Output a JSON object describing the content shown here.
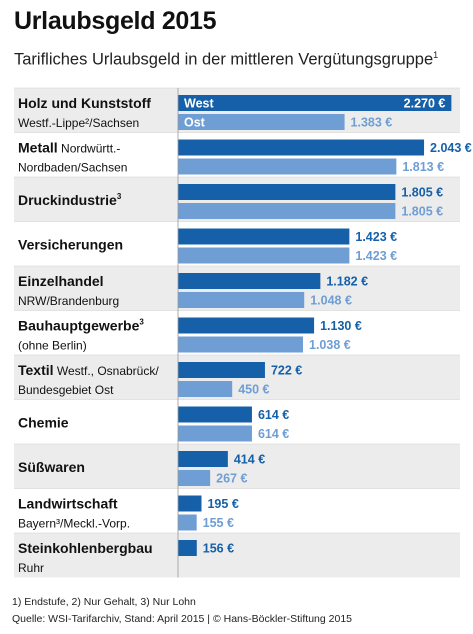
{
  "header": {
    "title": "Urlaubsgeld 2015",
    "subtitle": "Tarifliches Urlaubsgeld in der mittleren Vergütungsgruppe",
    "subtitle_sup": "1"
  },
  "footer": {
    "notes": "1) Endstufe, 2) Nur Gehalt, 3) Nur Lohn",
    "source": "Quelle: WSI-Tarifarchiv, Stand: April 2015 | © Hans-Böckler-Stiftung 2015"
  },
  "colors": {
    "west": "#1560a8",
    "ost": "#6e9ed4",
    "shade": "#ececec",
    "text": "#111111"
  },
  "chart_data": {
    "type": "bar",
    "orientation": "horizontal",
    "unit": "€",
    "series": [
      {
        "name": "West",
        "values": [
          2270,
          2043,
          1805,
          1423,
          1182,
          1130,
          722,
          614,
          414,
          195,
          156
        ]
      },
      {
        "name": "Ost",
        "values": [
          1383,
          1813,
          1805,
          1423,
          1048,
          1038,
          450,
          614,
          267,
          155,
          null
        ]
      }
    ],
    "series_labels_on_bars": [
      "West",
      "Ost"
    ],
    "categories": [
      {
        "name": "Holz und Kunststoff",
        "sub": "Westf.-Lippe²/Sachsen",
        "inline": "",
        "sup": "",
        "west": 2270,
        "ost": 1383,
        "west_label": "2.270 €",
        "ost_label": "1.383 €"
      },
      {
        "name": "Metall",
        "sub": "Nordbaden/Sachsen",
        "inline": "Nordwürtt.-",
        "sup": "",
        "west": 2043,
        "ost": 1813,
        "west_label": "2.043 €",
        "ost_label": "1.813 €"
      },
      {
        "name": "Druckindustrie",
        "sub": "",
        "inline": "",
        "sup": "3",
        "west": 1805,
        "ost": 1805,
        "west_label": "1.805 €",
        "ost_label": "1.805 €"
      },
      {
        "name": "Versicherungen",
        "sub": "",
        "inline": "",
        "sup": "",
        "west": 1423,
        "ost": 1423,
        "west_label": "1.423 €",
        "ost_label": "1.423 €"
      },
      {
        "name": "Einzelhandel",
        "sub": "NRW/Brandenburg",
        "inline": "",
        "sup": "",
        "west": 1182,
        "ost": 1048,
        "west_label": "1.182 €",
        "ost_label": "1.048 €"
      },
      {
        "name": "Bauhauptgewerbe",
        "sub": "(ohne Berlin)",
        "inline": "",
        "sup": "3",
        "west": 1130,
        "ost": 1038,
        "west_label": "1.130 €",
        "ost_label": "1.038 €"
      },
      {
        "name": "Textil",
        "sub": "Bundesgebiet Ost",
        "inline": "Westf., Osnabrück/",
        "sup": "",
        "west": 722,
        "ost": 450,
        "west_label": "722 €",
        "ost_label": "450 €"
      },
      {
        "name": "Chemie",
        "sub": "",
        "inline": "",
        "sup": "",
        "west": 614,
        "ost": 614,
        "west_label": "614 €",
        "ost_label": "614 €"
      },
      {
        "name": "Süßwaren",
        "sub": "",
        "inline": "",
        "sup": "",
        "west": 414,
        "ost": 267,
        "west_label": "414 €",
        "ost_label": "267 €"
      },
      {
        "name": "Landwirtschaft",
        "sub": "Bayern³/Meckl.-Vorp.",
        "inline": "",
        "sup": "",
        "west": 195,
        "ost": 155,
        "west_label": "195 €",
        "ost_label": "155 €"
      },
      {
        "name": "Steinkohlenbergbau",
        "sub": "Ruhr",
        "inline": "",
        "sup": "",
        "west": 156,
        "ost": null,
        "west_label": "156 €",
        "ost_label": ""
      }
    ],
    "xlim": [
      0,
      2300
    ],
    "shaded_rows": [
      0,
      2,
      4,
      6,
      8,
      10
    ],
    "grid": false,
    "legend": "inside first bars"
  }
}
